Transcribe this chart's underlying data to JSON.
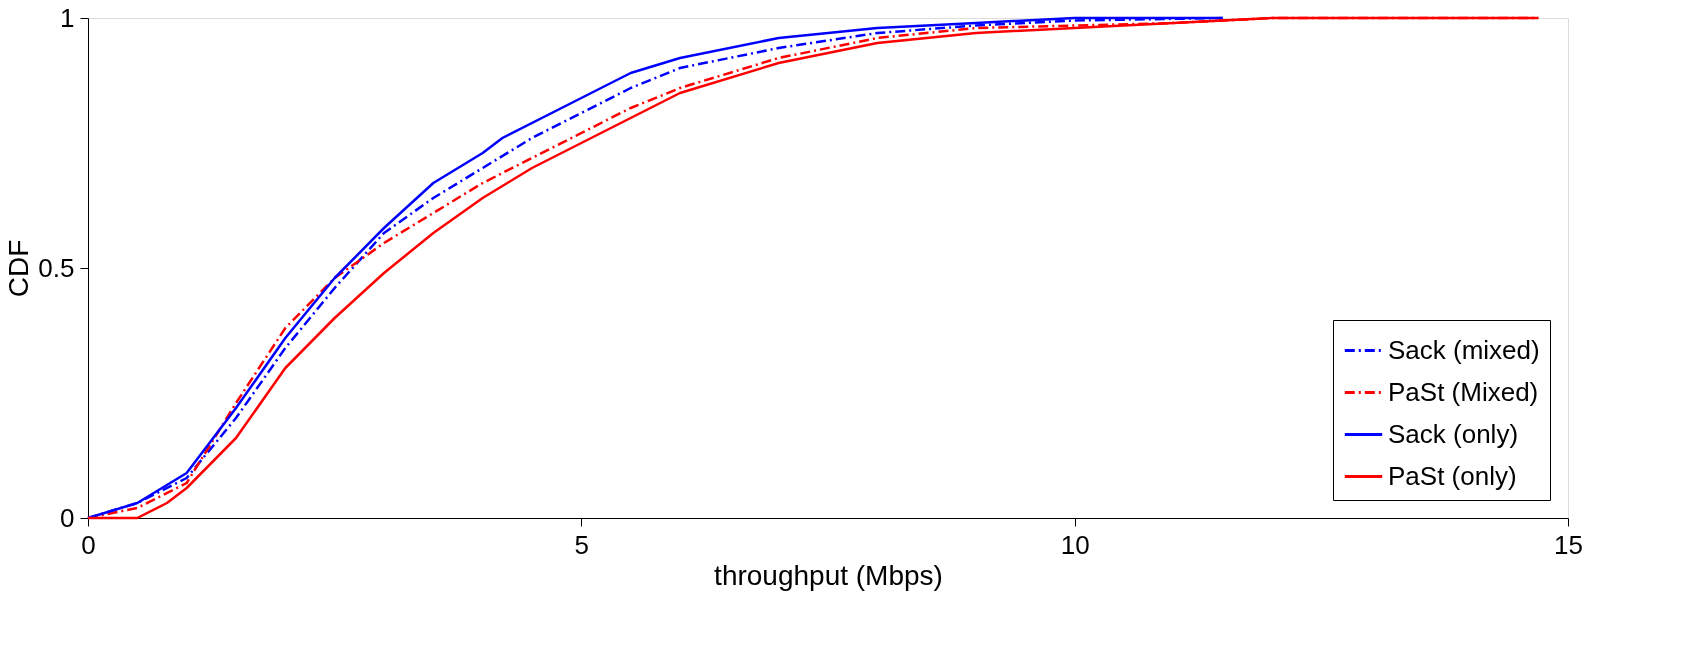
{
  "chart_data": {
    "type": "line",
    "xlabel": "throughput (Mbps)",
    "ylabel": "CDF",
    "xlim": [
      0,
      15
    ],
    "xticks": [
      0,
      5,
      10,
      15
    ],
    "ylim": [
      0,
      1
    ],
    "yticks": [
      0,
      0.5,
      1
    ],
    "grid": false,
    "legend": "bottom right",
    "marker": "none",
    "series": [
      {
        "name": "Sack (mixed)",
        "color": "#0000ff",
        "line_style": "dashed",
        "x": [
          0,
          0.5,
          1,
          1.5,
          2,
          2.5,
          3,
          3.5,
          4,
          4.5,
          5,
          5.5,
          6,
          7,
          8,
          9,
          10,
          11.5
        ],
        "values": [
          0,
          0.03,
          0.08,
          0.2,
          0.34,
          0.46,
          0.57,
          0.64,
          0.7,
          0.76,
          0.81,
          0.86,
          0.9,
          0.94,
          0.97,
          0.985,
          0.995,
          1
        ]
      },
      {
        "name": "PaSt (Mixed)",
        "color": "#ff0000",
        "line_style": "dashed",
        "x": [
          0,
          0.5,
          1,
          1.5,
          2,
          2.5,
          3,
          3.5,
          4,
          4.5,
          5,
          5.5,
          6,
          7,
          8,
          9,
          10,
          11,
          12,
          14.7
        ],
        "values": [
          0,
          0.02,
          0.07,
          0.23,
          0.38,
          0.48,
          0.55,
          0.61,
          0.67,
          0.72,
          0.77,
          0.82,
          0.86,
          0.92,
          0.96,
          0.98,
          0.985,
          0.99,
          1,
          1
        ]
      },
      {
        "name": "Sack (only)",
        "color": "#0000ff",
        "line_style": "solid",
        "x": [
          0,
          0.5,
          1,
          1.5,
          2,
          2.5,
          3,
          3.5,
          4,
          4.2,
          5,
          5.5,
          6,
          7,
          8,
          9,
          10,
          11.5
        ],
        "values": [
          0,
          0.03,
          0.09,
          0.22,
          0.36,
          0.48,
          0.58,
          0.67,
          0.73,
          0.76,
          0.84,
          0.89,
          0.92,
          0.96,
          0.98,
          0.99,
          1,
          1
        ]
      },
      {
        "name": "PaSt (only)",
        "color": "#ff0000",
        "line_style": "solid",
        "x": [
          0,
          0.5,
          0.8,
          1,
          1.5,
          2,
          2.5,
          3,
          3.5,
          4,
          4.5,
          5,
          5.5,
          6,
          7,
          8,
          9,
          10,
          11,
          12,
          14.7
        ],
        "values": [
          0,
          0,
          0.03,
          0.06,
          0.16,
          0.3,
          0.4,
          0.49,
          0.57,
          0.64,
          0.7,
          0.75,
          0.8,
          0.85,
          0.91,
          0.95,
          0.97,
          0.98,
          0.99,
          1,
          1
        ]
      }
    ]
  }
}
